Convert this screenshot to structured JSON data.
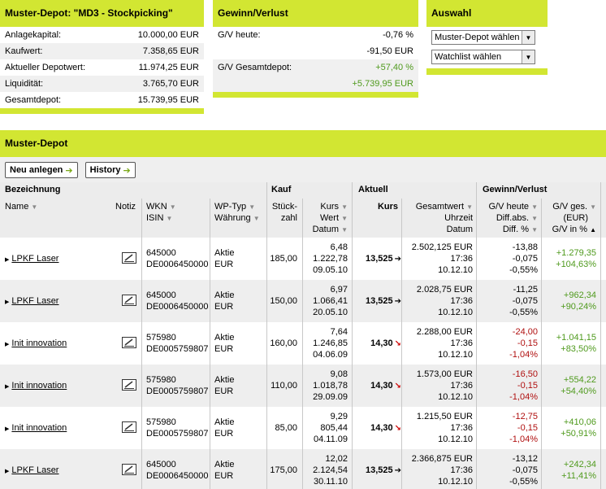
{
  "depot": {
    "title": "Muster-Depot: \"MD3 - Stockpicking\"",
    "rows": [
      {
        "label": "Anlagekapital:",
        "value": "10.000,00 EUR"
      },
      {
        "label": "Kaufwert:",
        "value": "7.358,65 EUR"
      },
      {
        "label": "Aktueller Depotwert:",
        "value": "11.974,25 EUR"
      },
      {
        "label": "Liquidität:",
        "value": "3.765,70 EUR"
      },
      {
        "label": "Gesamtdepot:",
        "value": "15.739,95 EUR"
      }
    ]
  },
  "gv": {
    "title": "Gewinn/Verlust",
    "heute_label": "G/V heute:",
    "heute_pct": "-0,76 %",
    "heute_abs": "-91,50 EUR",
    "gesamt_label": "G/V Gesamtdepot:",
    "gesamt_pct": "+57,40 %",
    "gesamt_abs": "+5.739,95 EUR"
  },
  "auswahl": {
    "title": "Auswahl",
    "select1": "Muster-Depot wählen",
    "select2": "Watchlist wählen"
  },
  "section_title": "Muster-Depot",
  "buttons": {
    "new": "Neu anlegen",
    "history": "History"
  },
  "headers": {
    "bezeichnung": "Bezeichnung",
    "kauf": "Kauf",
    "aktuell": "Aktuell",
    "gv": "Gewinn/Verlust",
    "name": "Name",
    "notiz": "Notiz",
    "wkn": "WKN",
    "isin": "ISIN",
    "wptyp": "WP-Typ",
    "waehrung": "Währung",
    "stueck": "Stück-",
    "zahl": "zahl",
    "kurs1": "Kurs",
    "wert": "Wert",
    "datum1": "Datum",
    "kurs2": "Kurs",
    "gesamtwert": "Gesamtwert",
    "uhrzeit": "Uhrzeit",
    "datum2": "Datum",
    "gvheute": "G/V heute",
    "diffabs": "Diff.abs.",
    "diffpct": "Diff. %",
    "gvges": "G/V ges.",
    "eur": "(EUR)",
    "gvpct": "G/V in %"
  },
  "rows": [
    {
      "name": "LPKF Laser",
      "wkn": "645000",
      "isin": "DE0006450000",
      "typ": "Aktie",
      "cur": "EUR",
      "stueck": "185,00",
      "kk": "6,48",
      "kw": "1.222,78",
      "kd": "09.05.10",
      "kurs": "13,525",
      "trend": "right",
      "gw": "2.502,125 EUR",
      "zeit": "17:36",
      "dat": "10.12.10",
      "gh": "-13,88",
      "da": "-0,075",
      "dp": "-0,55%",
      "gvneg": false,
      "ga": "+1.279,35",
      "gp": "+104,63%"
    },
    {
      "name": "LPKF Laser",
      "wkn": "645000",
      "isin": "DE0006450000",
      "typ": "Aktie",
      "cur": "EUR",
      "stueck": "150,00",
      "kk": "6,97",
      "kw": "1.066,41",
      "kd": "20.05.10",
      "kurs": "13,525",
      "trend": "right",
      "gw": "2.028,75 EUR",
      "zeit": "17:36",
      "dat": "10.12.10",
      "gh": "-11,25",
      "da": "-0,075",
      "dp": "-0,55%",
      "gvneg": false,
      "ga": "+962,34",
      "gp": "+90,24%"
    },
    {
      "name": "Init innovation",
      "wkn": "575980",
      "isin": "DE0005759807",
      "typ": "Aktie",
      "cur": "EUR",
      "stueck": "160,00",
      "kk": "7,64",
      "kw": "1.246,85",
      "kd": "04.06.09",
      "kurs": "14,30",
      "trend": "down",
      "gw": "2.288,00 EUR",
      "zeit": "17:36",
      "dat": "10.12.10",
      "gh": "-24,00",
      "da": "-0,15",
      "dp": "-1,04%",
      "gvneg": true,
      "ga": "+1.041,15",
      "gp": "+83,50%"
    },
    {
      "name": "Init innovation",
      "wkn": "575980",
      "isin": "DE0005759807",
      "typ": "Aktie",
      "cur": "EUR",
      "stueck": "110,00",
      "kk": "9,08",
      "kw": "1.018,78",
      "kd": "29.09.09",
      "kurs": "14,30",
      "trend": "down",
      "gw": "1.573,00 EUR",
      "zeit": "17:36",
      "dat": "10.12.10",
      "gh": "-16,50",
      "da": "-0,15",
      "dp": "-1,04%",
      "gvneg": true,
      "ga": "+554,22",
      "gp": "+54,40%"
    },
    {
      "name": "Init innovation",
      "wkn": "575980",
      "isin": "DE0005759807",
      "typ": "Aktie",
      "cur": "EUR",
      "stueck": "85,00",
      "kk": "9,29",
      "kw": "805,44",
      "kd": "04.11.09",
      "kurs": "14,30",
      "trend": "down",
      "gw": "1.215,50 EUR",
      "zeit": "17:36",
      "dat": "10.12.10",
      "gh": "-12,75",
      "da": "-0,15",
      "dp": "-1,04%",
      "gvneg": true,
      "ga": "+410,06",
      "gp": "+50,91%"
    },
    {
      "name": "LPKF Laser",
      "wkn": "645000",
      "isin": "DE0006450000",
      "typ": "Aktie",
      "cur": "EUR",
      "stueck": "175,00",
      "kk": "12,02",
      "kw": "2.124,54",
      "kd": "30.11.10",
      "kurs": "13,525",
      "trend": "right",
      "gw": "2.366,875 EUR",
      "zeit": "17:36",
      "dat": "10.12.10",
      "gh": "-13,12",
      "da": "-0,075",
      "dp": "-0,55%",
      "gvneg": false,
      "ga": "+242,34",
      "gp": "+11,41%"
    }
  ]
}
